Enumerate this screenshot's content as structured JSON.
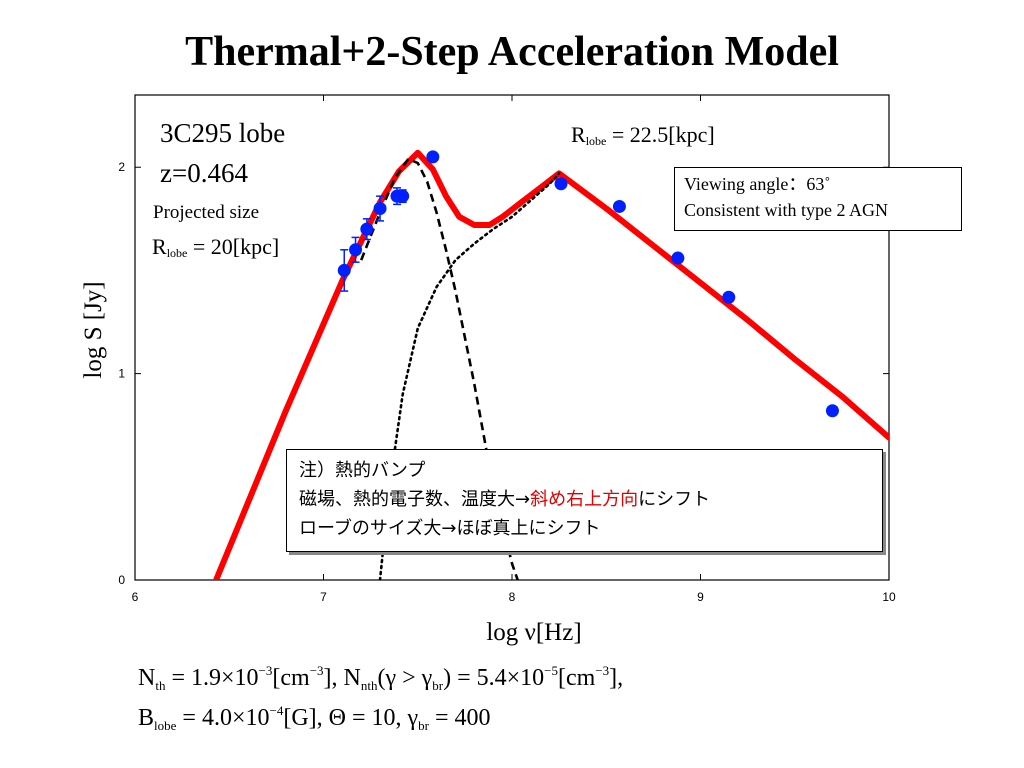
{
  "title": "Thermal+2-Step Acceleration Model",
  "annotations": {
    "source": "3C295 lobe",
    "redshift": "z=0.464",
    "projected_size": "Projected size",
    "r_lobe_left_base": "R",
    "r_lobe_left_sub": "lobe",
    "r_lobe_left_value": " = 20[kpc]",
    "r_lobe_right_base": "R",
    "r_lobe_right_sub": "lobe",
    "r_lobe_right_value": " = 22.5[kpc]",
    "viewing_angle": "Viewing angle：63˚",
    "consistent": "Consistent with type 2 AGN"
  },
  "note": {
    "line1": "注）熱的バンプ",
    "line2_a": "磁場、熱的電子数、温度大→",
    "line2_red": "斜め右上方向",
    "line2_b": "にシフト",
    "line3": "ローブのサイズ大→ほぼ真上にシフト",
    "accent_color": "#e00000"
  },
  "formula": {
    "line1": {
      "nth_base": "N",
      "nth_sub": "th",
      "nth_eq": " = 1.9×10",
      "nth_exp": "−3",
      "nth_unit_a": "[cm",
      "nth_unit_exp": "−3",
      "nth_unit_b": "], ",
      "nnth_base": "N",
      "nnth_sub": "nth",
      "nnth_cond_a": "(γ > γ",
      "nnth_cond_sub": "br",
      "nnth_eq": ") = 5.4×10",
      "nnth_exp": "−5",
      "nnth_unit_a": "[cm",
      "nnth_unit_exp": "−3",
      "nnth_unit_b": "],"
    },
    "line2": {
      "b_base": "B",
      "b_sub": "lobe",
      "b_eq": " = 4.0×10",
      "b_exp": "−4",
      "b_unit": "[G], Θ = 10, γ",
      "gbr_sub": "br",
      "gbr_eq": " = 400"
    }
  },
  "chart_data": {
    "type": "line",
    "xlabel": "log ν[Hz]",
    "ylabel": "log S [Jy]",
    "xlim": [
      6,
      10
    ],
    "ylim": [
      0,
      2.35
    ],
    "xticks": [
      6,
      7,
      8,
      9,
      10
    ],
    "yticks": [
      0,
      1,
      2
    ],
    "grid": false,
    "legend": "none",
    "colors": {
      "total": "#ff0000",
      "points": "#0020ff",
      "error_bars": "#0020ff",
      "components": "#000000"
    },
    "series": [
      {
        "style": "solid-thick",
        "x": [
          6.43,
          6.8,
          7.1,
          7.3,
          7.4,
          7.5,
          7.58,
          7.65,
          7.72,
          7.8,
          7.88,
          7.95,
          8.05,
          8.15,
          8.25,
          8.5,
          8.75,
          9.0,
          9.25,
          9.5,
          9.75,
          10.0
        ],
        "y": [
          0.0,
          0.82,
          1.45,
          1.83,
          1.98,
          2.07,
          1.99,
          1.86,
          1.76,
          1.72,
          1.72,
          1.76,
          1.83,
          1.9,
          1.97,
          1.8,
          1.62,
          1.44,
          1.26,
          1.07,
          0.89,
          0.69
        ]
      },
      {
        "style": "dashed",
        "x": [
          7.2,
          7.3,
          7.38,
          7.45,
          7.5,
          7.55,
          7.6,
          7.65,
          7.7,
          7.8,
          7.9,
          8.0,
          8.03
        ],
        "y": [
          1.55,
          1.78,
          1.95,
          2.04,
          2.02,
          1.93,
          1.78,
          1.6,
          1.4,
          0.95,
          0.45,
          0.08,
          0.0
        ]
      },
      {
        "style": "dotted",
        "x": [
          7.3,
          7.35,
          7.42,
          7.5,
          7.6,
          7.7,
          7.8,
          7.9,
          8.0,
          8.1,
          8.2,
          8.25
        ],
        "y": [
          0.0,
          0.45,
          0.9,
          1.22,
          1.42,
          1.55,
          1.63,
          1.7,
          1.76,
          1.84,
          1.92,
          1.97
        ]
      },
      {
        "style": "points",
        "x": [
          7.11,
          7.17,
          7.23,
          7.3,
          7.39,
          7.42,
          7.58,
          8.26,
          8.57,
          8.88,
          9.15,
          9.7
        ],
        "y": [
          1.5,
          1.6,
          1.7,
          1.8,
          1.86,
          1.86,
          2.05,
          1.92,
          1.81,
          1.56,
          1.37,
          0.82
        ],
        "err": [
          0.1,
          0.06,
          0.05,
          0.06,
          0.04,
          0.03,
          0.0,
          0.0,
          0.0,
          0.0,
          0.0,
          0.0
        ]
      }
    ]
  }
}
